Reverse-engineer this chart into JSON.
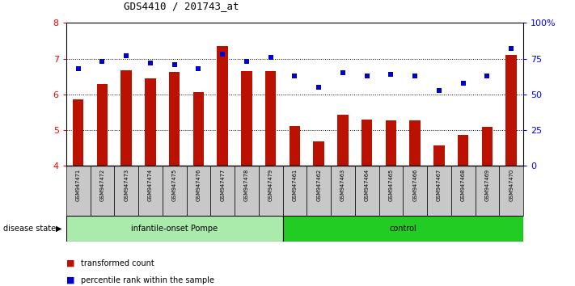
{
  "title": "GDS4410 / 201743_at",
  "samples": [
    "GSM947471",
    "GSM947472",
    "GSM947473",
    "GSM947474",
    "GSM947475",
    "GSM947476",
    "GSM947477",
    "GSM947478",
    "GSM947479",
    "GSM947461",
    "GSM947462",
    "GSM947463",
    "GSM947464",
    "GSM947465",
    "GSM947466",
    "GSM947467",
    "GSM947468",
    "GSM947469",
    "GSM947470"
  ],
  "bar_values": [
    5.85,
    6.3,
    6.68,
    6.45,
    6.62,
    6.07,
    7.35,
    6.65,
    6.65,
    5.12,
    4.68,
    5.42,
    5.3,
    5.28,
    5.28,
    4.58,
    4.87,
    5.1,
    7.1
  ],
  "dot_percentiles": [
    68,
    73,
    77,
    72,
    71,
    68,
    78,
    73,
    76,
    63,
    55,
    65,
    63,
    64,
    63,
    53,
    58,
    63,
    82
  ],
  "ylim_left": [
    4,
    8
  ],
  "ylim_right": [
    0,
    100
  ],
  "yticks_left": [
    4,
    5,
    6,
    7,
    8
  ],
  "yticks_right": [
    0,
    25,
    50,
    75,
    100
  ],
  "yticklabels_right": [
    "0",
    "25",
    "50",
    "75",
    "100%"
  ],
  "group1_label": "infantile-onset Pompe",
  "group2_label": "control",
  "group1_count": 9,
  "group2_count": 10,
  "group1_color": "#aaeaaa",
  "group2_color": "#22cc22",
  "bar_color": "#bb1100",
  "dot_color": "#0000cc",
  "disease_state_label": "disease state",
  "legend_bar_label": "transformed count",
  "legend_dot_label": "percentile rank within the sample",
  "sample_box_color": "#c8c8c8",
  "grid_dotted_color": "#333333"
}
